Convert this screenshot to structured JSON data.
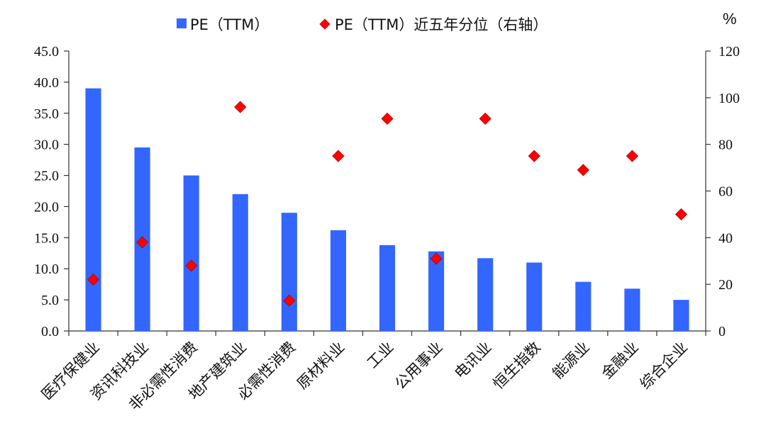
{
  "chart_data": {
    "type": "bar",
    "categories": [
      "医疗保健业",
      "资讯科技业",
      "非必需性消费",
      "地产建筑业",
      "必需性消费",
      "原材料业",
      "工业",
      "公用事业",
      "电讯业",
      "恒生指数",
      "能源业",
      "金融业",
      "综合企业"
    ],
    "series": [
      {
        "name": "PE（TTM）",
        "type": "bar",
        "axis": "left",
        "color": "#3366FF",
        "values": [
          39.0,
          29.5,
          25.0,
          22.0,
          19.0,
          16.2,
          13.8,
          12.8,
          11.7,
          11.0,
          7.9,
          6.8,
          5.0
        ]
      },
      {
        "name": "PE（TTM）近五年分位（右轴）",
        "type": "scatter",
        "axis": "right",
        "color": "#FF0000",
        "marker": "diamond",
        "values": [
          22,
          38,
          28,
          96,
          13,
          75,
          91,
          null,
          91,
          75,
          69,
          75,
          50
        ]
      }
    ],
    "extra_points": [
      {
        "category": "公用事业",
        "series": "PE（TTM）近五年分位（右轴）",
        "value": 31
      }
    ],
    "y_left": {
      "min": 0,
      "max": 45,
      "step": 5,
      "tick_labels": [
        "0.0",
        "5.0",
        "10.0",
        "15.0",
        "20.0",
        "25.0",
        "30.0",
        "35.0",
        "40.0",
        "45.0"
      ]
    },
    "y_right": {
      "min": 0,
      "max": 120,
      "step": 20,
      "unit": "%",
      "tick_labels": [
        "0",
        "20",
        "40",
        "60",
        "80",
        "100",
        "120"
      ]
    },
    "legend": {
      "position": "top"
    },
    "grid": false
  }
}
